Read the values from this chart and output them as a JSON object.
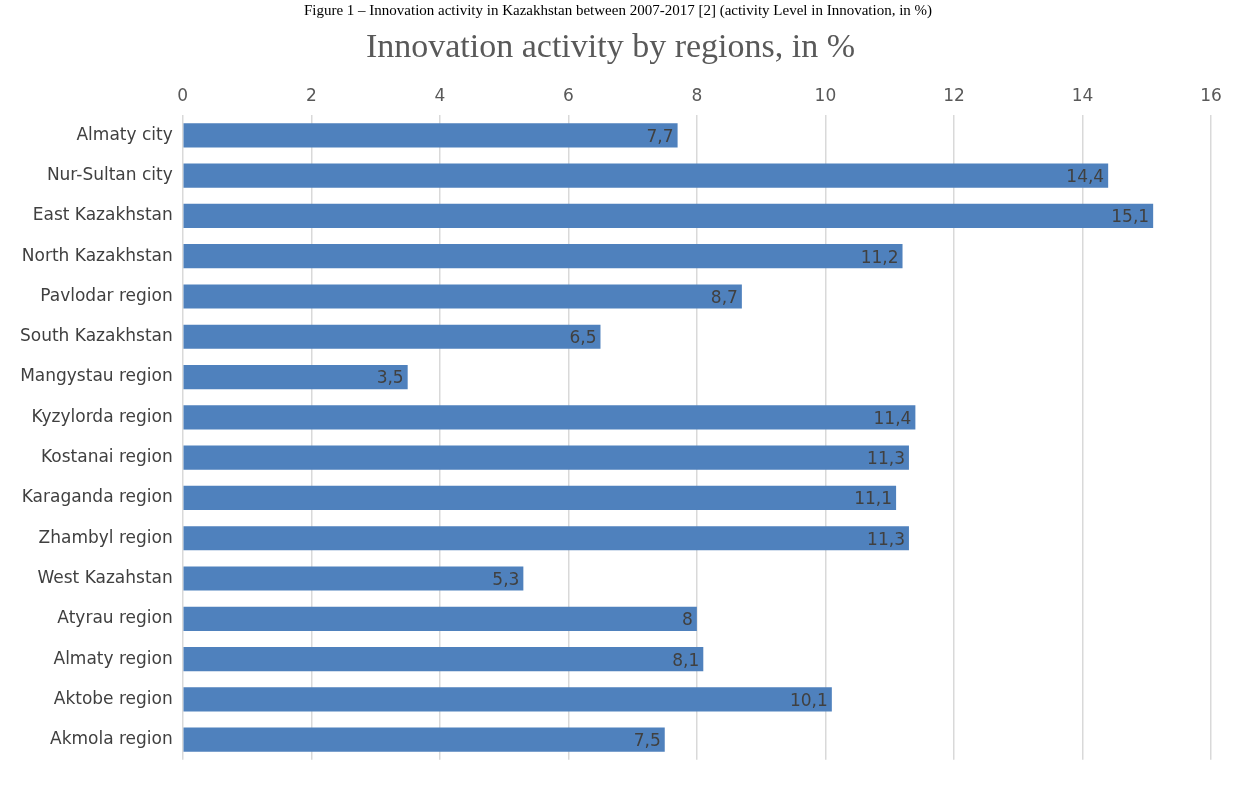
{
  "chart_data": {
    "type": "bar",
    "orientation": "horizontal",
    "title": "Innovation activity by regions, in %",
    "annotations": [
      "Figure 1 – Innovation activity in Kazakhstan between 2007-2017 [2] (activity Level in Innovation, in %)"
    ],
    "categories": [
      "Almaty city",
      "Nur-Sultan city",
      "East Kazakhstan",
      "North Kazakhstan",
      "Pavlodar region",
      "South Kazakhstan",
      "Mangystau region",
      "Kyzylorda region",
      "Kostanai region",
      "Karaganda region",
      "Zhambyl region",
      "West Kazahstan",
      "Atyrau region",
      "Almaty region",
      "Aktobe region",
      "Akmola region"
    ],
    "values": [
      7.7,
      14.4,
      15.1,
      11.2,
      8.7,
      6.5,
      3.5,
      11.4,
      11.3,
      11.1,
      11.3,
      5.3,
      8,
      8.1,
      10.1,
      7.5
    ],
    "value_labels": [
      "7,7",
      "14,4",
      "15,1",
      "11,2",
      "8,7",
      "6,5",
      "3,5",
      "11,4",
      "11,3",
      "11,1",
      "11,3",
      "5,3",
      "8",
      "8,1",
      "10,1",
      "7,5"
    ],
    "color": "#4f81bd",
    "xlim": [
      0,
      16
    ],
    "xticks": [
      0,
      2,
      4,
      6,
      8,
      10,
      12,
      14,
      16
    ],
    "grid": "x",
    "legend": false
  }
}
